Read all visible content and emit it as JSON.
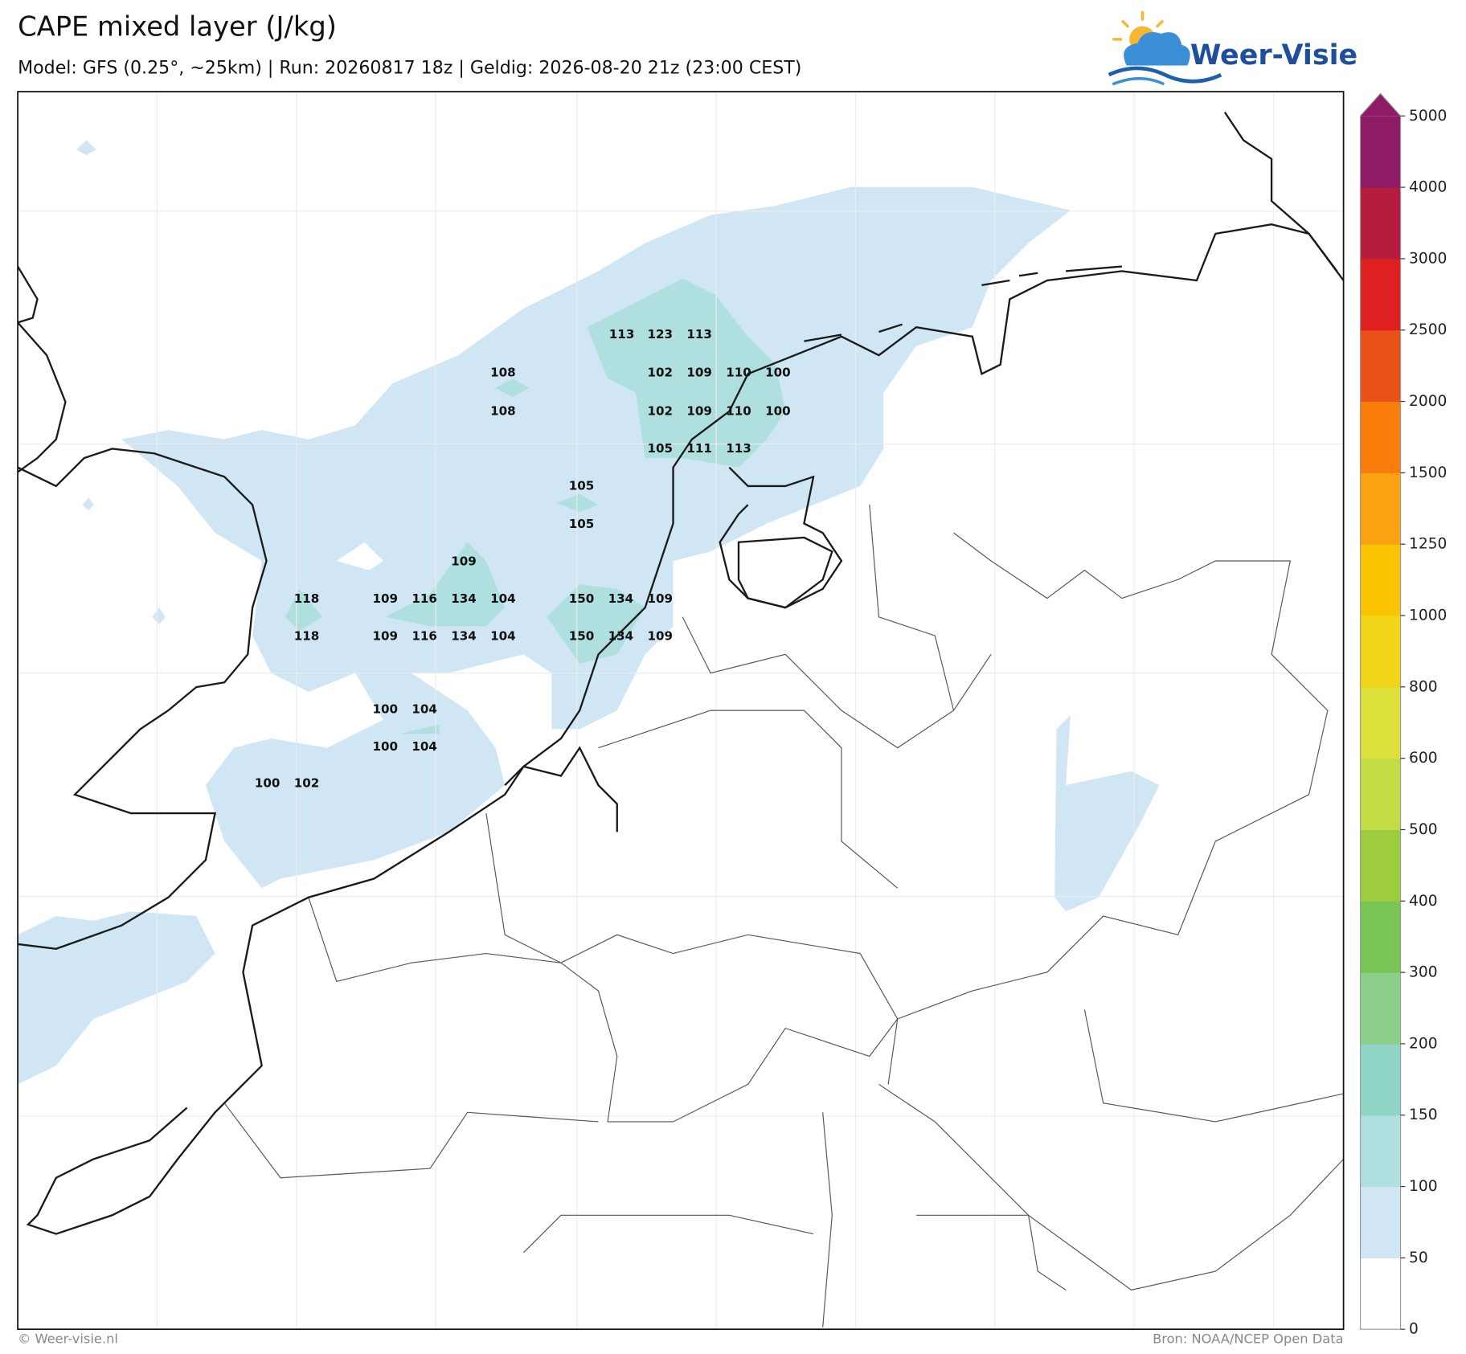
{
  "header": {
    "title": "CAPE mixed layer (J/kg)",
    "subtitle": "Model: GFS (0.25°, ~25km)  |  Run: 20260817 18z  |  Geldig: 2026-08-20 21z (23:00 CEST)",
    "logo": "Weer-Visie"
  },
  "map_labels": [
    113,
    123,
    113,
    108,
    102,
    109,
    110,
    100,
    108,
    102,
    109,
    110,
    100,
    105,
    111,
    113,
    105,
    105,
    109,
    118,
    109,
    116,
    134,
    104,
    150,
    134,
    109,
    118,
    109,
    116,
    134,
    104,
    150,
    134,
    109,
    100,
    104,
    100,
    104,
    100,
    102
  ],
  "colorbar": {
    "ticks": [
      0,
      50,
      100,
      150,
      200,
      300,
      400,
      500,
      600,
      800,
      1000,
      1250,
      1500,
      2000,
      2500,
      3000,
      4000,
      5000
    ],
    "colors": [
      "#ffffff",
      "#d0e6f5",
      "#b0dfdf",
      "#90d4c6",
      "#8cce8a",
      "#78c455",
      "#9dcc3e",
      "#c2dc45",
      "#dde03b",
      "#f2d418",
      "#fbc400",
      "#fca212",
      "#f97d0a",
      "#e8511a",
      "#df2020",
      "#b51c3e",
      "#8e1b66"
    ]
  },
  "footer": {
    "left": "© Weer-visie.nl",
    "right": "Bron: NOAA/NCEP Open Data"
  }
}
